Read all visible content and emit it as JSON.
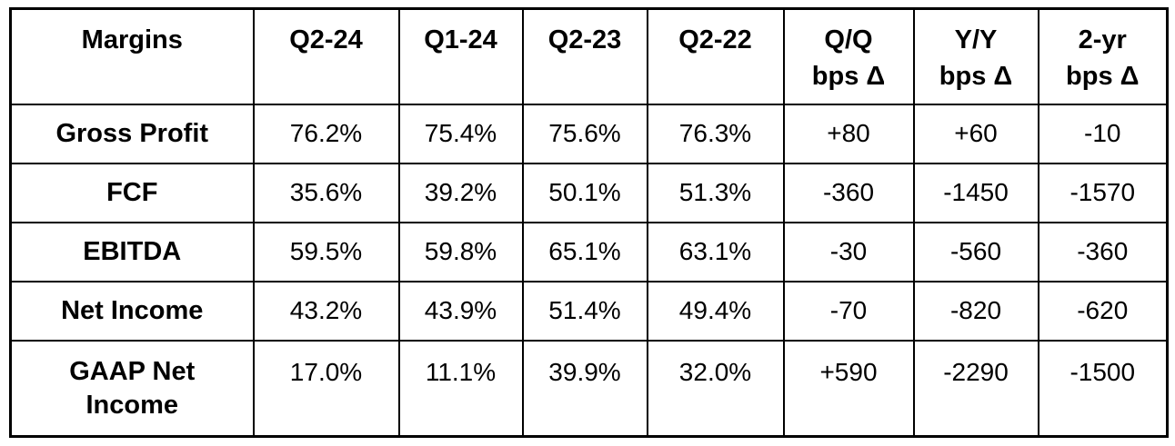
{
  "colors": {
    "border": "#000000",
    "text": "#000000",
    "background": "#ffffff"
  },
  "chart_data": {
    "type": "table",
    "title": "Margins",
    "columns": [
      "Margins",
      "Q2-24",
      "Q1-24",
      "Q2-23",
      "Q2-22",
      "Q/Q\nbps Δ",
      "Y/Y\nbps Δ",
      "2-yr\nbps Δ"
    ],
    "rows": [
      {
        "label": "Gross Profit",
        "values": [
          "76.2%",
          "75.4%",
          "75.6%",
          "76.3%",
          "+80",
          "+60",
          "-10"
        ]
      },
      {
        "label": "FCF",
        "values": [
          "35.6%",
          "39.2%",
          "50.1%",
          "51.3%",
          "-360",
          "-1450",
          "-1570"
        ]
      },
      {
        "label": "EBITDA",
        "values": [
          "59.5%",
          "59.8%",
          "65.1%",
          "63.1%",
          "-30",
          "-560",
          "-360"
        ]
      },
      {
        "label": "Net Income",
        "values": [
          "43.2%",
          "43.9%",
          "51.4%",
          "49.4%",
          "-70",
          "-820",
          "-620"
        ]
      },
      {
        "label": "GAAP Net\nIncome",
        "values": [
          "17.0%",
          "11.1%",
          "39.9%",
          "32.0%",
          "+590",
          "-2290",
          "-1500"
        ]
      }
    ]
  }
}
